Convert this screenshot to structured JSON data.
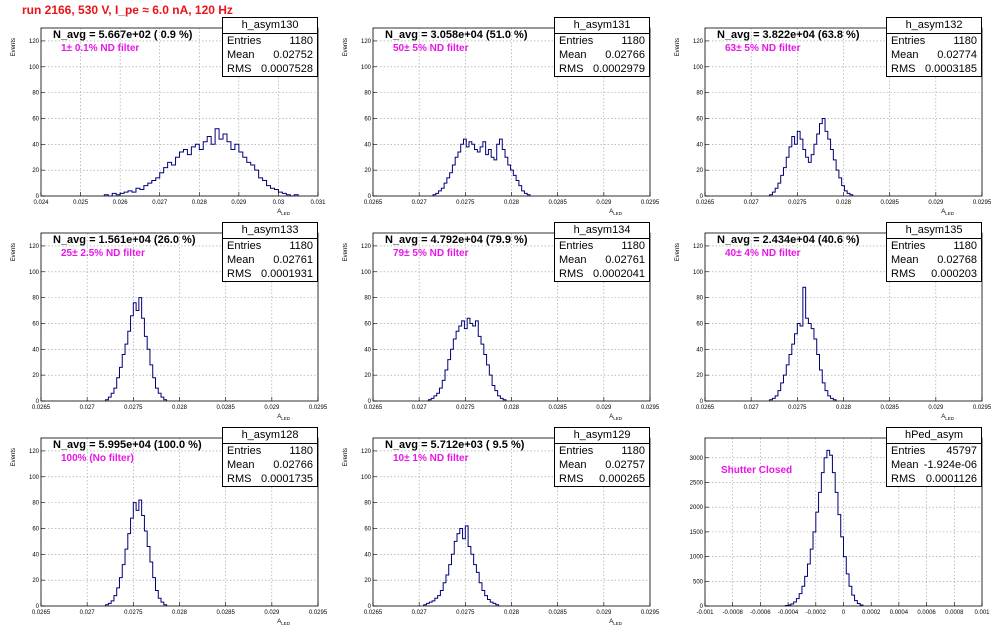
{
  "title": "run 2166,   530 V, I_pe ≈ 6.0 nA, 120 Hz",
  "stats_labels": {
    "entries": "Entries",
    "mean": "Mean",
    "rms": "RMS"
  },
  "chart_data": [
    {
      "type": "histogram",
      "name": "h_asym130",
      "xlabel": "A_LED",
      "ylabel": "Events",
      "xlim": [
        0.024,
        0.031
      ],
      "ylim": [
        0,
        130
      ],
      "xticks": [
        0.024,
        0.025,
        0.026,
        0.027,
        0.028,
        0.029,
        0.03,
        0.031
      ],
      "xtick_labels": [
        "0.024",
        "0.025",
        "0.026",
        "0.027",
        "0.028",
        "0.029",
        "0.03",
        "0.031"
      ],
      "yticks": [
        0,
        20,
        40,
        60,
        80,
        100,
        120
      ],
      "annotation": "N_avg = 5.667e+02 ( 0.9 %)",
      "filter_label": "1± 0.1% ND filter",
      "stats": {
        "entries": "1180",
        "mean": "0.02752",
        "rms": "0.0007528"
      },
      "bin_low": 0.0256,
      "bin_width": 0.0001,
      "counts": [
        1,
        0,
        2,
        1,
        2,
        3,
        4,
        3,
        6,
        5,
        8,
        10,
        12,
        14,
        18,
        22,
        26,
        24,
        30,
        34,
        36,
        32,
        38,
        40,
        36,
        42,
        46,
        40,
        52,
        44,
        48,
        42,
        36,
        40,
        34,
        30,
        26,
        24,
        20,
        14,
        12,
        8,
        6,
        5,
        3,
        2,
        1,
        0,
        1
      ]
    },
    {
      "type": "histogram",
      "name": "h_asym131",
      "xlabel": "A_LED",
      "ylabel": "Events",
      "xlim": [
        0.0265,
        0.0295
      ],
      "ylim": [
        0,
        130
      ],
      "xticks": [
        0.0265,
        0.027,
        0.0275,
        0.028,
        0.0285,
        0.029,
        0.0295
      ],
      "xtick_labels": [
        "0.0265",
        "0.027",
        "0.0275",
        "0.028",
        "0.0285",
        "0.029",
        "0.0295"
      ],
      "yticks": [
        0,
        20,
        40,
        60,
        80,
        100,
        120
      ],
      "annotation": "N_avg = 3.058e+04 (51.0 %)",
      "filter_label": "50± 5% ND filter",
      "stats": {
        "entries": "1180",
        "mean": "0.02766",
        "rms": "0.0002979"
      },
      "bin_low": 0.02715,
      "bin_width": 3e-05,
      "counts": [
        1,
        2,
        4,
        6,
        10,
        14,
        18,
        24,
        30,
        34,
        40,
        44,
        38,
        42,
        40,
        36,
        34,
        38,
        42,
        32,
        36,
        30,
        28,
        40,
        44,
        36,
        30,
        24,
        20,
        16,
        12,
        8,
        4,
        2,
        1
      ]
    },
    {
      "type": "histogram",
      "name": "h_asym132",
      "xlabel": "A_LED",
      "ylabel": "Events",
      "xlim": [
        0.0265,
        0.0295
      ],
      "ylim": [
        0,
        130
      ],
      "xticks": [
        0.0265,
        0.027,
        0.0275,
        0.028,
        0.0285,
        0.029,
        0.0295
      ],
      "xtick_labels": [
        "0.0265",
        "0.027",
        "0.0275",
        "0.028",
        "0.0285",
        "0.029",
        "0.0295"
      ],
      "yticks": [
        0,
        20,
        40,
        60,
        80,
        100,
        120
      ],
      "annotation": "N_avg = 3.822e+04 (63.8 %)",
      "filter_label": "63± 5% ND filter",
      "stats": {
        "entries": "1180",
        "mean": "0.02774",
        "rms": "0.0003185"
      },
      "bin_low": 0.0272,
      "bin_width": 3e-05,
      "counts": [
        1,
        3,
        6,
        10,
        16,
        22,
        30,
        38,
        46,
        40,
        50,
        44,
        36,
        30,
        26,
        32,
        40,
        48,
        56,
        60,
        50,
        44,
        36,
        28,
        20,
        14,
        8,
        4,
        2,
        1
      ]
    },
    {
      "type": "histogram",
      "name": "h_asym133",
      "xlabel": "A_LED",
      "ylabel": "Events",
      "xlim": [
        0.0265,
        0.0295
      ],
      "ylim": [
        0,
        130
      ],
      "xticks": [
        0.0265,
        0.027,
        0.0275,
        0.028,
        0.0285,
        0.029,
        0.0295
      ],
      "xtick_labels": [
        "0.0265",
        "0.027",
        "0.0275",
        "0.028",
        "0.0285",
        "0.029",
        "0.0295"
      ],
      "yticks": [
        0,
        20,
        40,
        60,
        80,
        100,
        120
      ],
      "annotation": "N_avg = 1.561e+04 (26.0 %)",
      "filter_label": "25± 2.5% ND filter",
      "stats": {
        "entries": "1180",
        "mean": "0.02761",
        "rms": "0.0001931"
      },
      "bin_low": 0.0272,
      "bin_width": 3e-05,
      "counts": [
        1,
        3,
        6,
        10,
        18,
        26,
        36,
        44,
        54,
        66,
        76,
        70,
        80,
        64,
        50,
        40,
        28,
        18,
        10,
        6,
        3,
        1
      ]
    },
    {
      "type": "histogram",
      "name": "h_asym134",
      "xlabel": "A_LED",
      "ylabel": "Events",
      "xlim": [
        0.0265,
        0.0295
      ],
      "ylim": [
        0,
        130
      ],
      "xticks": [
        0.0265,
        0.027,
        0.0275,
        0.028,
        0.0285,
        0.029,
        0.0295
      ],
      "xtick_labels": [
        "0.0265",
        "0.027",
        "0.0275",
        "0.028",
        "0.0285",
        "0.029",
        "0.0295"
      ],
      "yticks": [
        0,
        20,
        40,
        60,
        80,
        100,
        120
      ],
      "annotation": "N_avg = 4.792e+04 (79.9 %)",
      "filter_label": "79± 5% ND filter",
      "stats": {
        "entries": "1180",
        "mean": "0.02761",
        "rms": "0.0002041"
      },
      "bin_low": 0.0271,
      "bin_width": 3e-05,
      "counts": [
        1,
        2,
        4,
        6,
        10,
        16,
        24,
        32,
        40,
        48,
        54,
        58,
        62,
        56,
        64,
        60,
        58,
        62,
        50,
        44,
        36,
        28,
        20,
        12,
        8,
        4,
        2,
        1
      ]
    },
    {
      "type": "histogram",
      "name": "h_asym135",
      "xlabel": "A_LED",
      "ylabel": "Events",
      "xlim": [
        0.0265,
        0.0295
      ],
      "ylim": [
        0,
        130
      ],
      "xticks": [
        0.0265,
        0.027,
        0.0275,
        0.028,
        0.0285,
        0.029,
        0.0295
      ],
      "xtick_labels": [
        "0.0265",
        "0.027",
        "0.0275",
        "0.028",
        "0.0285",
        "0.029",
        "0.0295"
      ],
      "yticks": [
        0,
        20,
        40,
        60,
        80,
        100,
        120
      ],
      "annotation": "N_avg = 2.434e+04 (40.6 %)",
      "filter_label": "40± 4% ND filter",
      "stats": {
        "entries": "1180",
        "mean": "0.02768",
        "rms": "0.000203"
      },
      "bin_low": 0.0272,
      "bin_width": 3e-05,
      "counts": [
        1,
        2,
        4,
        8,
        14,
        20,
        28,
        36,
        44,
        52,
        60,
        58,
        88,
        64,
        60,
        56,
        48,
        36,
        24,
        14,
        8,
        4,
        2,
        1
      ]
    },
    {
      "type": "histogram",
      "name": "h_asym128",
      "xlabel": "A_LED",
      "ylabel": "Events",
      "xlim": [
        0.0265,
        0.0295
      ],
      "ylim": [
        0,
        130
      ],
      "xticks": [
        0.0265,
        0.027,
        0.0275,
        0.028,
        0.0285,
        0.029,
        0.0295
      ],
      "xtick_labels": [
        "0.0265",
        "0.027",
        "0.0275",
        "0.028",
        "0.0285",
        "0.029",
        "0.0295"
      ],
      "yticks": [
        0,
        20,
        40,
        60,
        80,
        100,
        120
      ],
      "annotation": "N_avg = 5.995e+04 (100.0 %)",
      "filter_label": "100% (No filter)",
      "stats": {
        "entries": "1180",
        "mean": "0.02766",
        "rms": "0.0001735"
      },
      "bin_low": 0.0272,
      "bin_width": 3e-05,
      "counts": [
        1,
        2,
        4,
        8,
        14,
        22,
        32,
        44,
        56,
        68,
        80,
        74,
        82,
        70,
        58,
        46,
        34,
        22,
        12,
        6,
        3,
        1
      ]
    },
    {
      "type": "histogram",
      "name": "h_asym129",
      "xlabel": "A_LED",
      "ylabel": "Events",
      "xlim": [
        0.0265,
        0.0295
      ],
      "ylim": [
        0,
        130
      ],
      "xticks": [
        0.0265,
        0.027,
        0.0275,
        0.028,
        0.0285,
        0.029,
        0.0295
      ],
      "xtick_labels": [
        "0.0265",
        "0.027",
        "0.0275",
        "0.028",
        "0.0285",
        "0.029",
        "0.0295"
      ],
      "yticks": [
        0,
        20,
        40,
        60,
        80,
        100,
        120
      ],
      "annotation": "N_avg = 5.712e+03 ( 9.5 %)",
      "filter_label": "10± 1% ND filter",
      "stats": {
        "entries": "1180",
        "mean": "0.02757",
        "rms": "0.000265"
      },
      "bin_low": 0.02705,
      "bin_width": 3e-05,
      "counts": [
        1,
        2,
        3,
        4,
        6,
        8,
        12,
        18,
        24,
        32,
        40,
        50,
        56,
        60,
        52,
        62,
        46,
        40,
        32,
        26,
        18,
        12,
        8,
        5,
        3,
        2,
        1
      ]
    },
    {
      "type": "histogram",
      "name": "hPed_asym",
      "xlabel": "",
      "ylabel": "",
      "xlim": [
        -0.001,
        0.001
      ],
      "ylim": [
        0,
        3400
      ],
      "xticks": [
        -0.001,
        -0.0008,
        -0.0006,
        -0.0004,
        -0.0002,
        0,
        0.0002,
        0.0004,
        0.0006,
        0.0008,
        0.001
      ],
      "xtick_labels": [
        "-0.001",
        "-0.0008",
        "-0.0006",
        "-0.0004",
        "-0.0002",
        "0",
        "0.0002",
        "0.0004",
        "0.0006",
        "0.0008",
        "0.001"
      ],
      "yticks": [
        0,
        500,
        1000,
        1500,
        2000,
        2500,
        3000
      ],
      "annotation": "",
      "filter_label": "Shutter Closed",
      "stats": {
        "entries": "45797",
        "mean": "-1.924e-06",
        "rms": "0.0001126"
      },
      "bin_low": -0.00042,
      "bin_width": 2e-05,
      "counts": [
        10,
        20,
        40,
        80,
        150,
        250,
        400,
        600,
        850,
        1150,
        1500,
        1900,
        2300,
        2700,
        3000,
        3150,
        3050,
        2700,
        2300,
        1850,
        1400,
        1000,
        650,
        400,
        220,
        110,
        50,
        20
      ]
    }
  ]
}
